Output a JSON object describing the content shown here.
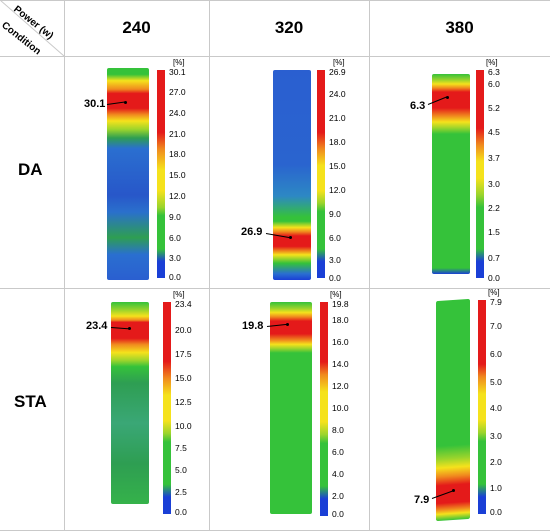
{
  "header": {
    "corner_top": "Power (w)",
    "corner_bottom": "Condition",
    "columns": [
      "240",
      "320",
      "380"
    ]
  },
  "rows": [
    "DA",
    "STA"
  ],
  "unit": "[%]",
  "cells": [
    {
      "id": "da-240",
      "callout": "30.1",
      "ticks": [
        "30.1",
        "27.0",
        "24.0",
        "21.0",
        "18.0",
        "15.0",
        "12.0",
        "9.0",
        "6.0",
        "3.0",
        "0.0"
      ]
    },
    {
      "id": "da-320",
      "callout": "26.9",
      "ticks": [
        "26.9",
        "24.0",
        "21.0",
        "18.0",
        "15.0",
        "12.0",
        "9.0",
        "6.0",
        "3.0",
        "0.0"
      ]
    },
    {
      "id": "da-380",
      "callout": "6.3",
      "ticks": [
        "6.3",
        "6.0",
        "5.2",
        "4.5",
        "3.7",
        "3.0",
        "2.2",
        "1.5",
        "0.7",
        "0.0"
      ]
    },
    {
      "id": "sta-240",
      "callout": "23.4",
      "ticks": [
        "23.4",
        "20.0",
        "17.5",
        "15.0",
        "12.5",
        "10.0",
        "7.5",
        "5.0",
        "2.5",
        "0.0"
      ]
    },
    {
      "id": "sta-320",
      "callout": "19.8",
      "ticks": [
        "19.8",
        "18.0",
        "16.0",
        "14.0",
        "12.0",
        "10.0",
        "8.0",
        "6.0",
        "4.0",
        "2.0",
        "0.0"
      ]
    },
    {
      "id": "sta-380",
      "callout": "7.9",
      "ticks": [
        "7.9",
        "7.0",
        "6.0",
        "5.0",
        "4.0",
        "3.0",
        "2.0",
        "1.0",
        "0.0"
      ]
    }
  ],
  "colors": {
    "red": "#e41a1a",
    "orange": "#f08a1e",
    "yellow": "#f5e21c",
    "green": "#35c23a",
    "green_dark": "#2e9e52",
    "blue": "#1a3fd6",
    "grid": "#c9c9c9"
  }
}
